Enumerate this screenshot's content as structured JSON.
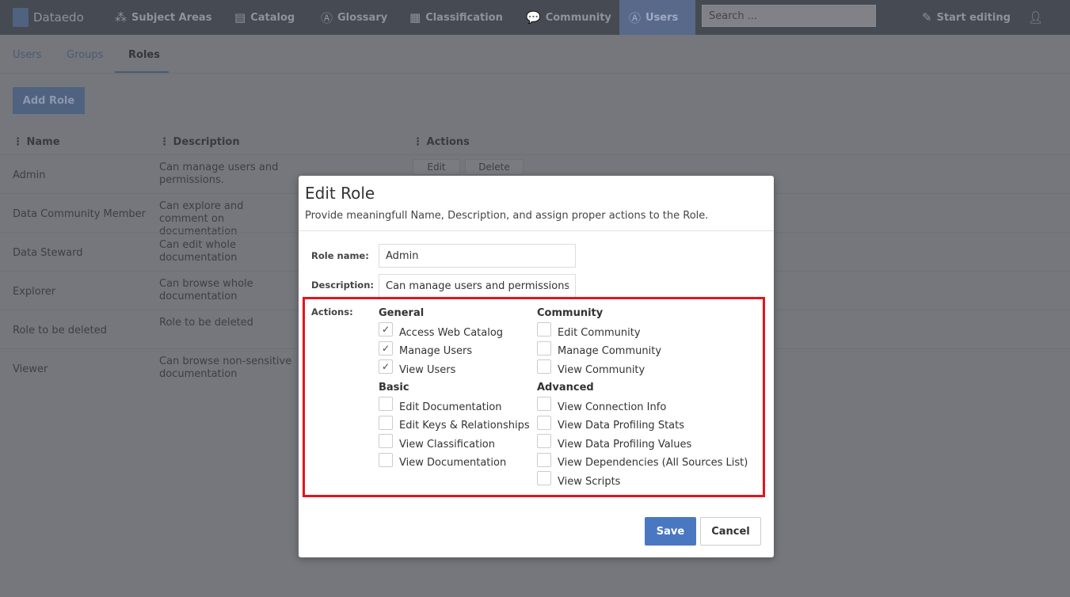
{
  "topbar": {
    "brand": "Dataedo",
    "items": [
      {
        "icon": "subject-areas-icon",
        "glyph": "⁂",
        "label": "Subject Areas"
      },
      {
        "icon": "catalog-icon",
        "glyph": "▤",
        "label": "Catalog"
      },
      {
        "icon": "glossary-icon",
        "glyph": "Ⓐ",
        "label": "Glossary"
      },
      {
        "icon": "classification-icon",
        "glyph": "▦",
        "label": "Classification"
      },
      {
        "icon": "community-icon",
        "glyph": "💬",
        "label": "Community"
      },
      {
        "icon": "users-icon",
        "glyph": "Ⓐ",
        "label": "Users"
      }
    ],
    "search_placeholder": "Search ...",
    "start_editing": "Start editing"
  },
  "tabs": [
    "Users",
    "Groups",
    "Roles"
  ],
  "add_role": "Add Role",
  "table": {
    "headers": [
      "Name",
      "Description",
      "Actions"
    ],
    "rows": [
      {
        "name": "Admin",
        "description": "Can manage users and permissions."
      },
      {
        "name": "Data Community Member",
        "description": "Can explore and comment on documentation"
      },
      {
        "name": "Data Steward",
        "description": "Can edit whole documentation"
      },
      {
        "name": "Explorer",
        "description": "Can browse whole documentation"
      },
      {
        "name": "Role to be deleted",
        "description": "Role to be deleted"
      },
      {
        "name": "Viewer",
        "description": "Can browse non-sensitive documentation"
      }
    ],
    "edit": "Edit",
    "delete": "Delete"
  },
  "modal": {
    "title": "Edit Role",
    "subtitle": "Provide meaningfull Name, Description, and assign proper actions to the Role.",
    "role_name_label": "Role name:",
    "role_name": "Admin",
    "description_label": "Description:",
    "description": "Can manage users and permissions.",
    "actions_label": "Actions:",
    "groups": {
      "general": {
        "title": "General",
        "items": [
          {
            "label": "Access Web Catalog",
            "checked": true
          },
          {
            "label": "Manage Users",
            "checked": true
          },
          {
            "label": "View Users",
            "checked": true
          }
        ]
      },
      "basic": {
        "title": "Basic",
        "items": [
          {
            "label": "Edit Documentation",
            "checked": false
          },
          {
            "label": "Edit Keys & Relationships",
            "checked": false
          },
          {
            "label": "View Classification",
            "checked": false
          },
          {
            "label": "View Documentation",
            "checked": false
          }
        ]
      },
      "community": {
        "title": "Community",
        "items": [
          {
            "label": "Edit Community",
            "checked": false
          },
          {
            "label": "Manage Community",
            "checked": false
          },
          {
            "label": "View Community",
            "checked": false
          }
        ]
      },
      "advanced": {
        "title": "Advanced",
        "items": [
          {
            "label": "View Connection Info",
            "checked": false
          },
          {
            "label": "View Data Profiling Stats",
            "checked": false
          },
          {
            "label": "View Data Profiling Values",
            "checked": false
          },
          {
            "label": "View Dependencies (All Sources List)",
            "checked": false
          },
          {
            "label": "View Scripts",
            "checked": false
          }
        ]
      }
    },
    "save": "Save",
    "cancel": "Cancel"
  },
  "colors": {
    "accent": "#4a78c0",
    "highlight": "#e3141e"
  }
}
